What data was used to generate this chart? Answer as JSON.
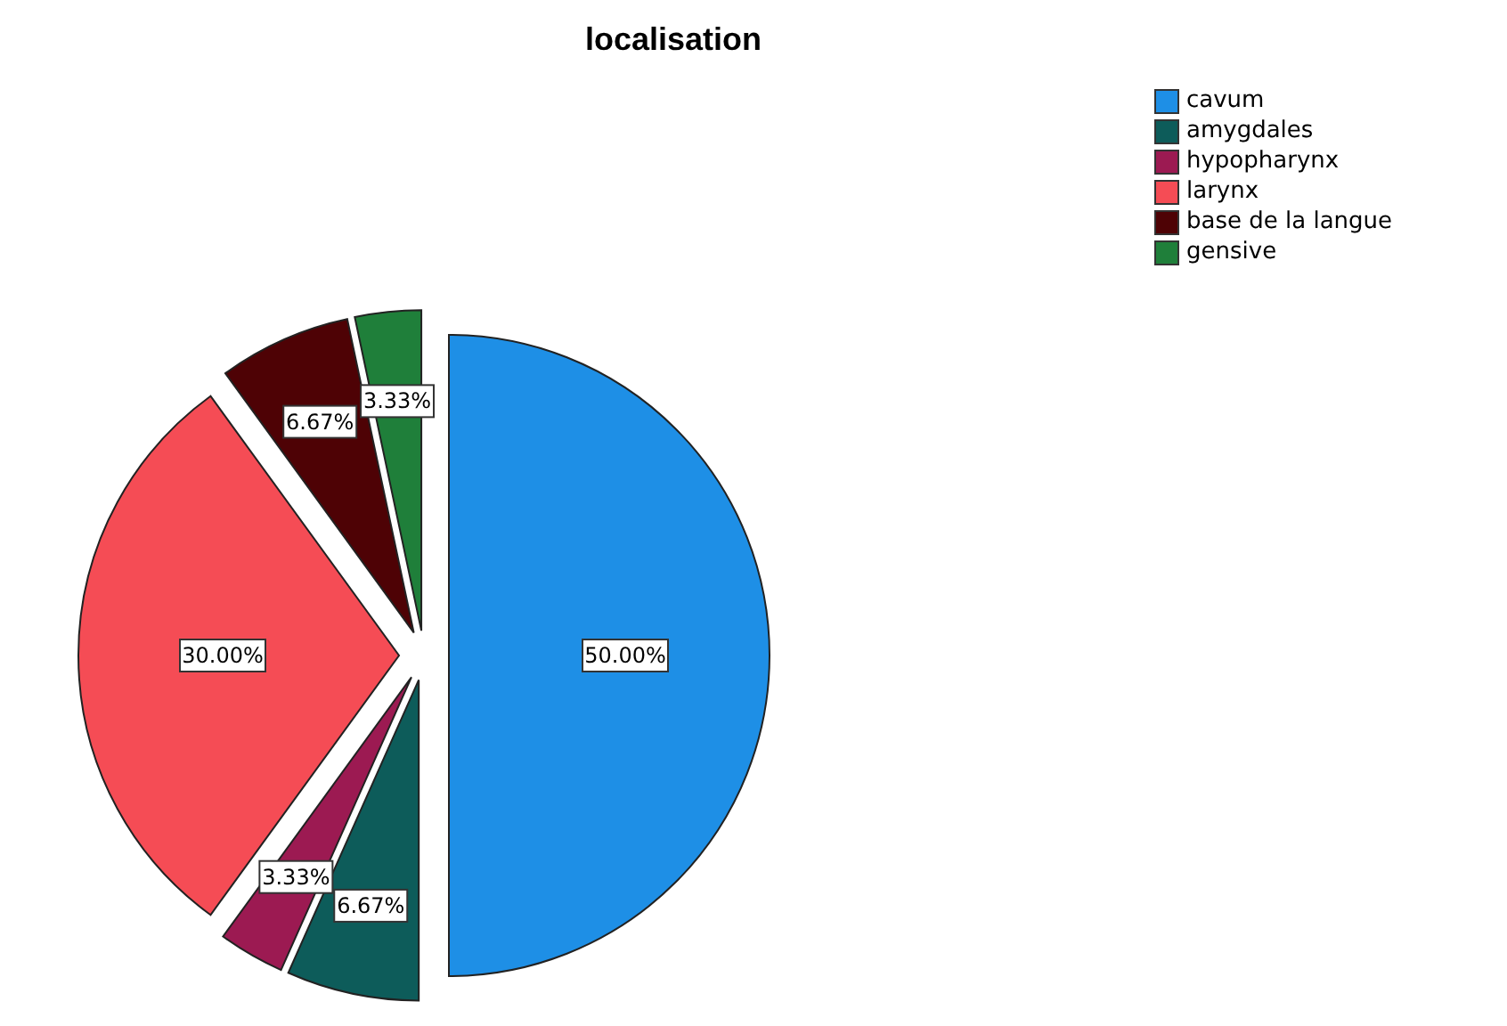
{
  "chart_data": {
    "type": "pie",
    "title": "localisation",
    "categories": [
      "cavum",
      "amygdales",
      "hypopharynx",
      "larynx",
      "base de la langue",
      "gensive"
    ],
    "values": [
      50,
      6.67,
      3.33,
      30,
      6.67,
      3.33
    ],
    "colors": [
      "#1e8fe6",
      "#0d5c5a",
      "#9c1a52",
      "#f54c55",
      "#4e0205",
      "#1f7f3a"
    ],
    "value_labels": [
      "50.00%",
      "6.67%",
      "3.33%",
      "30.00%",
      "6.67%",
      "3.33%"
    ],
    "legend": "top right"
  }
}
